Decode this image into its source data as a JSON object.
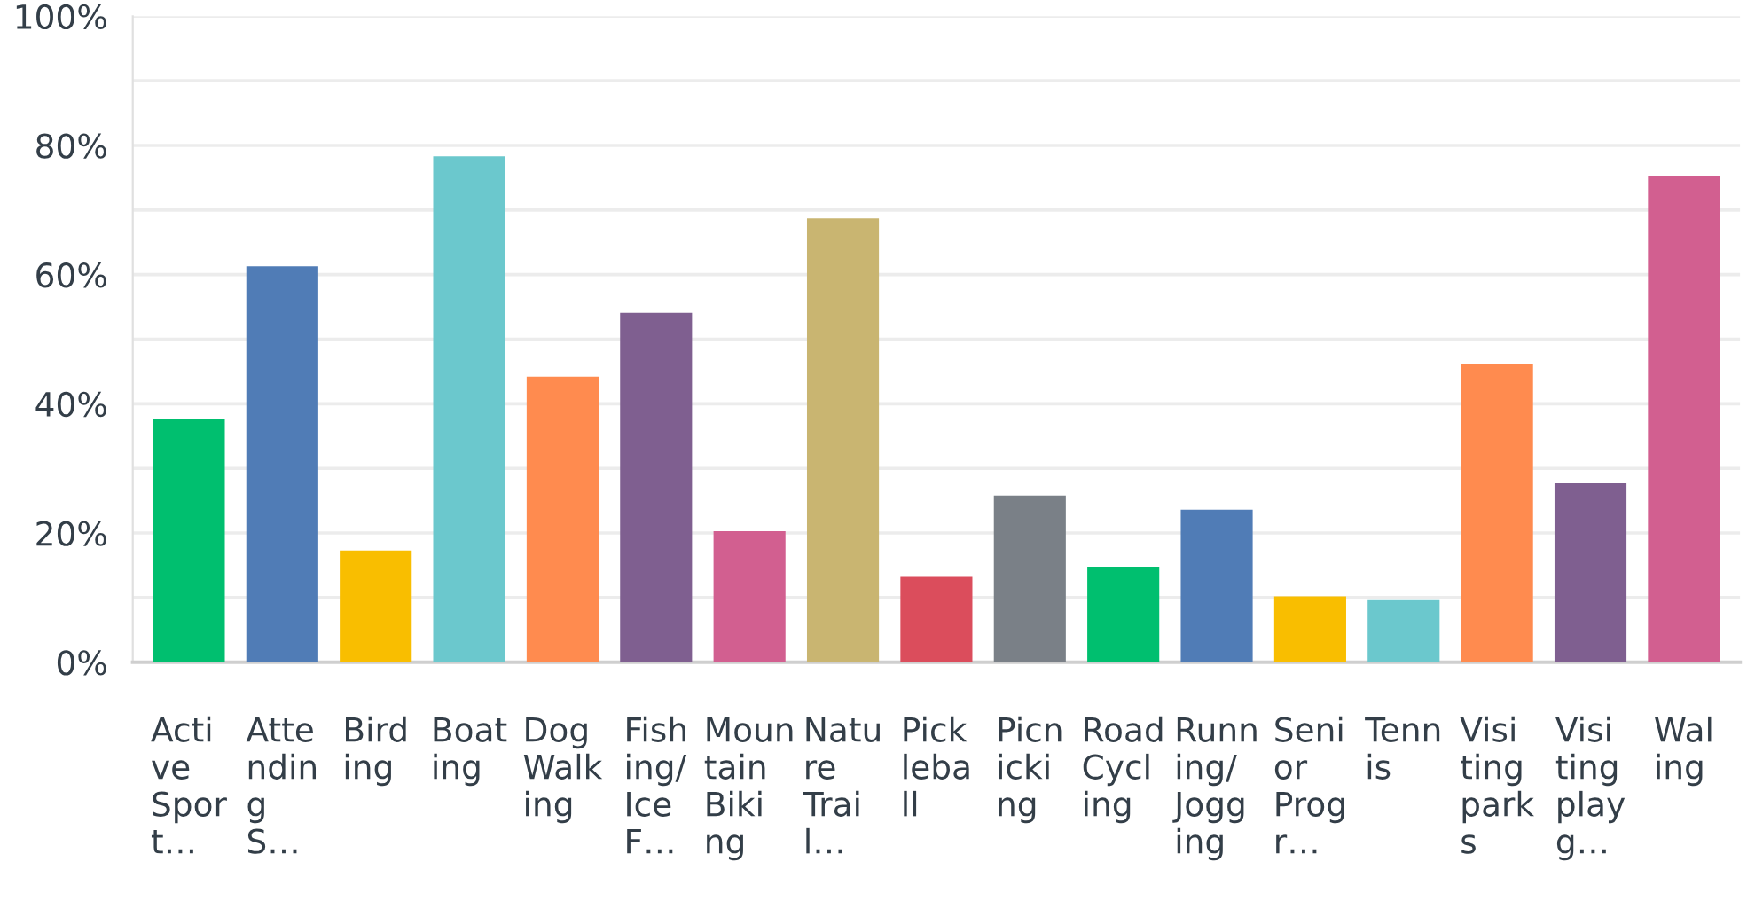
{
  "chart_data": {
    "type": "bar",
    "categories": [
      "Acti\nve\nSpor\nt…",
      "Atte\nndin\ng\nS…",
      "Bird\ning",
      "Boat\ning",
      "Dog\nWalk\ning",
      "Fish\ning/\nIce\nF…",
      "Moun\ntain\nBiki\nng",
      "Natu\nre\nTrai\nl…",
      "Pick\nleba\nll",
      "Picn\nicki\nng",
      "Road\nCycl\ning",
      "Runn\ning/\nJogg\ning",
      "Seni\nor\nProg\nr…",
      "Tenn\nis",
      "Visi\nting\npark\ns",
      "Visi\nting\nplay\ng…",
      "Wal\ning"
    ],
    "values": [
      37.6,
      61.3,
      17.3,
      78.3,
      44.2,
      54.1,
      20.3,
      68.7,
      13.2,
      25.8,
      14.8,
      23.6,
      10.2,
      9.6,
      46.2,
      27.7,
      75.3
    ],
    "colors": [
      "#00bf6f",
      "#507cb6",
      "#f9be00",
      "#6bc8cd",
      "#ff8b4f",
      "#7f5f90",
      "#d25f90",
      "#c9b571",
      "#db4d5c",
      "#7a8087",
      "#00bf6f",
      "#507cb6",
      "#f9be00",
      "#6bc8cd",
      "#ff8b4f",
      "#7f5f90",
      "#d25f90"
    ],
    "ylim": [
      0,
      100
    ],
    "yticks": [
      {
        "value": 0,
        "label": "0%"
      },
      {
        "value": 10,
        "label": null
      },
      {
        "value": 20,
        "label": "20%"
      },
      {
        "value": 30,
        "label": null
      },
      {
        "value": 40,
        "label": "40%"
      },
      {
        "value": 50,
        "label": null
      },
      {
        "value": 60,
        "label": "60%"
      },
      {
        "value": 70,
        "label": null
      },
      {
        "value": 80,
        "label": "80%"
      },
      {
        "value": 90,
        "label": null
      },
      {
        "value": 100,
        "label": "100%"
      }
    ],
    "grid": "y"
  }
}
